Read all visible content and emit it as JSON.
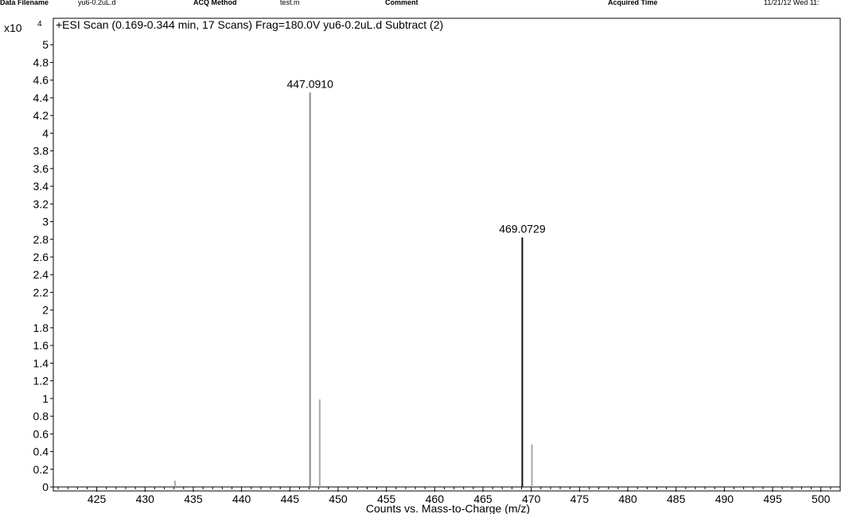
{
  "header": {
    "data_filename_label": "Data Filename",
    "data_filename_value": "yu6-0.2uL.d",
    "acq_method_label": "ACQ Method",
    "acq_method_value": "test.m",
    "comment_label": "Comment",
    "acquired_time_label": "Acquired Time",
    "acquired_time_value": "11/21/12 Wed 11:"
  },
  "chart_data": {
    "type": "bar",
    "title": "+ESI Scan (0.169-0.344 min, 17 Scans) Frag=180.0V yu6-0.2uL.d  Subtract (2)",
    "xlabel": "Counts vs. Mass-to-Charge (m/z)",
    "ylabel": "",
    "y_multiplier_label": "x10",
    "y_multiplier_exponent": "4",
    "xlim": [
      420.5,
      502
    ],
    "ylim": [
      0,
      5.2
    ],
    "x_ticks": [
      425,
      430,
      435,
      440,
      445,
      450,
      455,
      460,
      465,
      470,
      475,
      480,
      485,
      490,
      495,
      500
    ],
    "y_ticks": [
      0,
      0.2,
      0.4,
      0.6,
      0.8,
      1,
      1.2,
      1.4,
      1.6,
      1.8,
      2,
      2.2,
      2.4,
      2.6,
      2.8,
      3,
      3.2,
      3.4,
      3.6,
      3.8,
      4,
      4.2,
      4.4,
      4.6,
      4.8,
      5
    ],
    "grid": false,
    "peaks": [
      {
        "mz": 433.1,
        "intensity": 0.07,
        "label": "",
        "color": "#a8a8a8"
      },
      {
        "mz": 447.091,
        "intensity": 4.46,
        "label": "447.0910",
        "color": "#8c8c8c"
      },
      {
        "mz": 448.09,
        "intensity": 0.99,
        "label": "",
        "color": "#a8a8a8"
      },
      {
        "mz": 469.0729,
        "intensity": 2.82,
        "label": "469.0729",
        "color": "#111111"
      },
      {
        "mz": 470.07,
        "intensity": 0.48,
        "label": "",
        "color": "#a8a8a8"
      }
    ]
  }
}
